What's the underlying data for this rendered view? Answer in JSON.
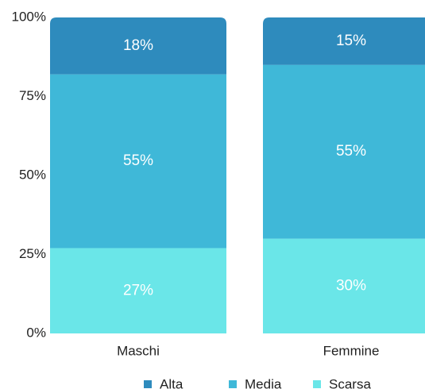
{
  "chart_data": {
    "type": "stacked_bar",
    "categories": [
      "Maschi",
      "Femmine"
    ],
    "series": [
      {
        "name": "Scarsa",
        "color": "#6ae6e8",
        "values": [
          27,
          30
        ],
        "value_labels": [
          "27%",
          "30%"
        ]
      },
      {
        "name": "Media",
        "color": "#3fb8d8",
        "values": [
          55,
          55
        ],
        "value_labels": [
          "55%",
          "55%"
        ]
      },
      {
        "name": "Alta",
        "color": "#2e8bbd",
        "values": [
          18,
          15
        ],
        "value_labels": [
          "18%",
          "15%"
        ]
      }
    ],
    "legend_order": [
      "Alta",
      "Media",
      "Scarsa"
    ],
    "ylim": [
      0,
      100
    ],
    "yticks": [
      {
        "value": 0,
        "label": "0%"
      },
      {
        "value": 25,
        "label": "25%"
      },
      {
        "value": 50,
        "label": "50%"
      },
      {
        "value": 75,
        "label": "75%"
      },
      {
        "value": 100,
        "label": "100%"
      }
    ],
    "legend": "bottom"
  }
}
